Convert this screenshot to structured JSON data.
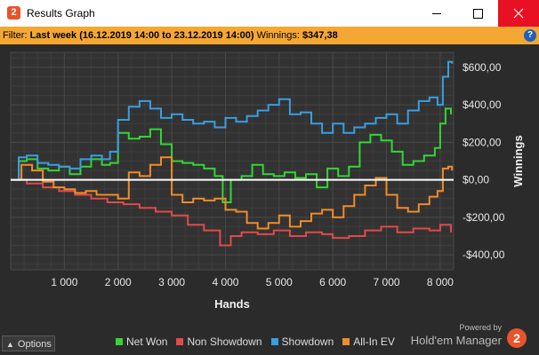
{
  "window": {
    "title": "Results Graph",
    "app_icon_label": "2"
  },
  "filter": {
    "label": "Filter:",
    "value": "Last week (16.12.2019 14:00 to 23.12.2019 14:00)",
    "winnings_label": "Winnings:",
    "winnings_value": "$347,38",
    "help_label": "?"
  },
  "chart_data": {
    "type": "line",
    "xlabel": "Hands",
    "ylabel": "Winnings",
    "xlim": [
      0,
      8250
    ],
    "ylim": [
      -480,
      680
    ],
    "x_ticks": [
      1000,
      2000,
      3000,
      4000,
      5000,
      6000,
      7000,
      8000
    ],
    "x_tick_labels": [
      "1 000",
      "2 000",
      "3 000",
      "4 000",
      "5 000",
      "6 000",
      "7 000",
      "8 000"
    ],
    "y_ticks": [
      600,
      400,
      200,
      0,
      -200,
      -400
    ],
    "y_tick_labels": [
      "$600,00",
      "$400,00",
      "$200,00",
      "$0,00",
      "-$200,00",
      "-$400,00"
    ],
    "grid": true,
    "legend_position": "bottom",
    "series": [
      {
        "name": "Net Won",
        "color": "#33d633",
        "x": [
          0,
          150,
          300,
          500,
          700,
          900,
          1100,
          1300,
          1500,
          1700,
          1850,
          2000,
          2200,
          2400,
          2600,
          2800,
          3000,
          3200,
          3400,
          3600,
          3800,
          3950,
          4100,
          4300,
          4500,
          4700,
          4900,
          5100,
          5300,
          5500,
          5700,
          5900,
          6100,
          6300,
          6500,
          6700,
          6900,
          7100,
          7300,
          7500,
          7700,
          7900,
          8000,
          8100,
          8200
        ],
        "y": [
          0,
          100,
          110,
          60,
          50,
          70,
          30,
          70,
          110,
          80,
          90,
          250,
          220,
          230,
          270,
          190,
          100,
          90,
          80,
          60,
          20,
          -120,
          0,
          20,
          80,
          30,
          20,
          40,
          10,
          30,
          -40,
          60,
          20,
          70,
          200,
          240,
          210,
          150,
          80,
          100,
          130,
          170,
          300,
          380,
          350
        ]
      },
      {
        "name": "Non Showdown",
        "color": "#e04a4a",
        "x": [
          0,
          300,
          600,
          900,
          1200,
          1500,
          1800,
          2100,
          2400,
          2700,
          3000,
          3300,
          3600,
          3900,
          4100,
          4300,
          4600,
          4900,
          5200,
          5500,
          5800,
          6000,
          6300,
          6600,
          6900,
          7200,
          7500,
          7800,
          8000,
          8200
        ],
        "y": [
          0,
          -20,
          -40,
          -60,
          -80,
          -100,
          -120,
          -130,
          -150,
          -170,
          -190,
          -240,
          -270,
          -350,
          -300,
          -280,
          -290,
          -270,
          -300,
          -280,
          -290,
          -310,
          -300,
          -270,
          -250,
          -280,
          -260,
          -270,
          -240,
          -280
        ]
      },
      {
        "name": "Showdown",
        "color": "#3a9ee0",
        "x": [
          0,
          150,
          300,
          500,
          700,
          900,
          1100,
          1300,
          1500,
          1700,
          1850,
          2000,
          2200,
          2400,
          2600,
          2800,
          3000,
          3200,
          3400,
          3600,
          3800,
          4000,
          4200,
          4400,
          4600,
          4800,
          5000,
          5200,
          5400,
          5600,
          5800,
          6000,
          6200,
          6400,
          6600,
          6800,
          7000,
          7200,
          7400,
          7600,
          7800,
          7950,
          8050,
          8150,
          8220
        ],
        "y": [
          0,
          120,
          130,
          90,
          80,
          70,
          60,
          110,
          130,
          110,
          150,
          320,
          390,
          420,
          380,
          330,
          350,
          320,
          300,
          310,
          280,
          330,
          310,
          340,
          370,
          400,
          430,
          350,
          360,
          300,
          250,
          300,
          250,
          280,
          300,
          330,
          350,
          300,
          370,
          420,
          440,
          400,
          550,
          630,
          620
        ]
      },
      {
        "name": "All-In EV",
        "color": "#f08c2a",
        "x": [
          0,
          200,
          400,
          600,
          800,
          1000,
          1200,
          1400,
          1600,
          1800,
          2000,
          2200,
          2400,
          2600,
          2800,
          3000,
          3200,
          3400,
          3600,
          3800,
          4000,
          4200,
          4400,
          4600,
          4800,
          5000,
          5200,
          5400,
          5600,
          5800,
          6000,
          6200,
          6400,
          6600,
          6800,
          7000,
          7200,
          7400,
          7600,
          7800,
          7950,
          8050,
          8150,
          8220
        ],
        "y": [
          0,
          80,
          50,
          -10,
          -40,
          -50,
          -70,
          -60,
          -80,
          -80,
          -100,
          40,
          20,
          80,
          120,
          -80,
          -120,
          -100,
          -110,
          -100,
          -160,
          -170,
          -230,
          -260,
          -230,
          -190,
          -250,
          -220,
          -180,
          -160,
          -200,
          -140,
          -80,
          -30,
          10,
          -80,
          -150,
          -170,
          -130,
          -90,
          -60,
          60,
          70,
          50
        ]
      }
    ]
  },
  "footer": {
    "options_label": "Options",
    "powered_by": "Powered by",
    "brand_name": "Hold'em Manager",
    "brand_logo_label": "2"
  }
}
